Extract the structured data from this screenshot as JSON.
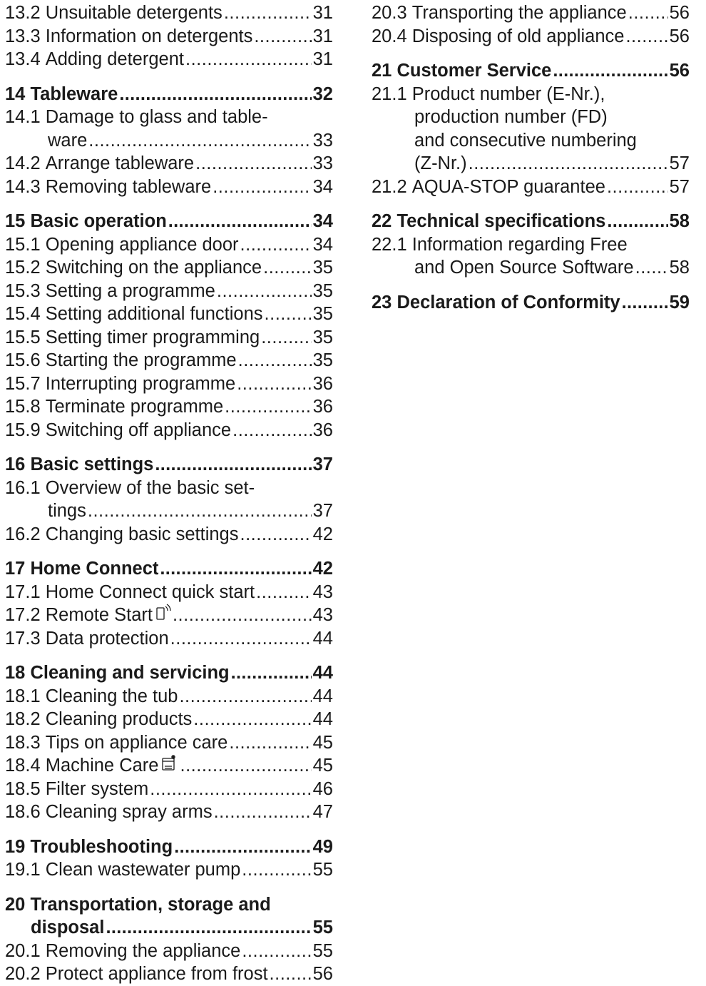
{
  "toc_left": [
    {
      "kind": "sub",
      "num": "13.2",
      "title": "Unsuitable detergents",
      "page": "31"
    },
    {
      "kind": "sub",
      "num": "13.3",
      "title": "Information on detergents",
      "page": "31"
    },
    {
      "kind": "sub",
      "num": "13.4",
      "title": "Adding detergent",
      "page": "31"
    },
    {
      "kind": "major",
      "num": "14",
      "title": "Tableware",
      "page": "32"
    },
    {
      "kind": "sub",
      "num": "14.1",
      "title": "Damage to glass and table-",
      "cont": "ware",
      "page": "33"
    },
    {
      "kind": "sub",
      "num": "14.2",
      "title": "Arrange tableware",
      "page": "33"
    },
    {
      "kind": "sub",
      "num": "14.3",
      "title": "Removing tableware",
      "page": "34"
    },
    {
      "kind": "major",
      "num": "15",
      "title": "Basic operation",
      "page": "34"
    },
    {
      "kind": "sub",
      "num": "15.1",
      "title": "Opening appliance door",
      "page": "34"
    },
    {
      "kind": "sub",
      "num": "15.2",
      "title": "Switching on the appliance",
      "page": "35"
    },
    {
      "kind": "sub",
      "num": "15.3",
      "title": "Setting a programme",
      "page": "35"
    },
    {
      "kind": "sub",
      "num": "15.4",
      "title": "Setting additional functions",
      "page": "35"
    },
    {
      "kind": "sub",
      "num": "15.5",
      "title": "Setting timer programming",
      "page": "35"
    },
    {
      "kind": "sub",
      "num": "15.6",
      "title": "Starting the programme",
      "page": "35"
    },
    {
      "kind": "sub",
      "num": "15.7",
      "title": "Interrupting programme",
      "page": "36"
    },
    {
      "kind": "sub",
      "num": "15.8",
      "title": "Terminate programme",
      "page": "36"
    },
    {
      "kind": "sub",
      "num": "15.9",
      "title": "Switching off appliance",
      "page": "36"
    },
    {
      "kind": "major",
      "num": "16",
      "title": "Basic settings",
      "page": "37"
    },
    {
      "kind": "sub",
      "num": "16.1",
      "title": "Overview of the basic set-",
      "cont": "tings",
      "page": "37"
    },
    {
      "kind": "sub",
      "num": "16.2",
      "title": "Changing basic settings",
      "page": "42"
    },
    {
      "kind": "major",
      "num": "17",
      "title": "Home Connect",
      "page": "42"
    },
    {
      "kind": "sub",
      "num": "17.1",
      "title": "Home Connect quick start",
      "page": "43"
    },
    {
      "kind": "sub",
      "num": "17.2",
      "title": "Remote Start",
      "icon": "remote-start-icon",
      "page": "43"
    },
    {
      "kind": "sub",
      "num": "17.3",
      "title": "Data protection",
      "page": "44"
    },
    {
      "kind": "major",
      "num": "18",
      "title": "Cleaning and servicing",
      "page": "44"
    },
    {
      "kind": "sub",
      "num": "18.1",
      "title": "Cleaning the tub",
      "page": "44"
    },
    {
      "kind": "sub",
      "num": "18.2",
      "title": "Cleaning products",
      "page": "44"
    },
    {
      "kind": "sub",
      "num": "18.3",
      "title": "Tips on appliance care",
      "page": "45"
    },
    {
      "kind": "sub",
      "num": "18.4",
      "title": "Machine Care",
      "icon": "machine-care-icon",
      "page": "45"
    },
    {
      "kind": "sub",
      "num": "18.5",
      "title": "Filter system",
      "page": "46"
    },
    {
      "kind": "sub",
      "num": "18.6",
      "title": "Cleaning spray arms",
      "page": "47"
    },
    {
      "kind": "major",
      "num": "19",
      "title": "Troubleshooting",
      "page": "49"
    },
    {
      "kind": "sub",
      "num": "19.1",
      "title": "Clean wastewater pump",
      "page": "55"
    },
    {
      "kind": "major",
      "num": "20",
      "title": "Transportation, storage and",
      "cont": "disposal",
      "page": "55"
    },
    {
      "kind": "sub",
      "num": "20.1",
      "title": "Removing the appliance",
      "page": "55"
    },
    {
      "kind": "sub",
      "num": "20.2",
      "title": "Protect appliance from frost",
      "page": "56"
    }
  ],
  "toc_right": [
    {
      "kind": "sub",
      "num": "20.3",
      "title": "Transporting the appliance",
      "page": "56"
    },
    {
      "kind": "sub",
      "num": "20.4",
      "title": "Disposing of old appliance",
      "page": "56"
    },
    {
      "kind": "major",
      "num": "21",
      "title": "Customer Service",
      "page": "56"
    },
    {
      "kind": "sub",
      "num": "21.1",
      "title": "Product number (E-Nr.),",
      "cont_lines": [
        "production number (FD)",
        "and consecutive numbering",
        "(Z-Nr.)"
      ],
      "page": "57"
    },
    {
      "kind": "sub",
      "num": "21.2",
      "title": "AQUA-STOP guarantee",
      "page": "57"
    },
    {
      "kind": "major",
      "num": "22",
      "title": "Technical specifications",
      "page": "58"
    },
    {
      "kind": "sub",
      "num": "22.1",
      "title": "Information regarding Free",
      "cont_lines": [
        "and Open Source Software"
      ],
      "page": "58"
    },
    {
      "kind": "major",
      "num": "23",
      "title": "Declaration of Conformity",
      "page": "59"
    }
  ]
}
